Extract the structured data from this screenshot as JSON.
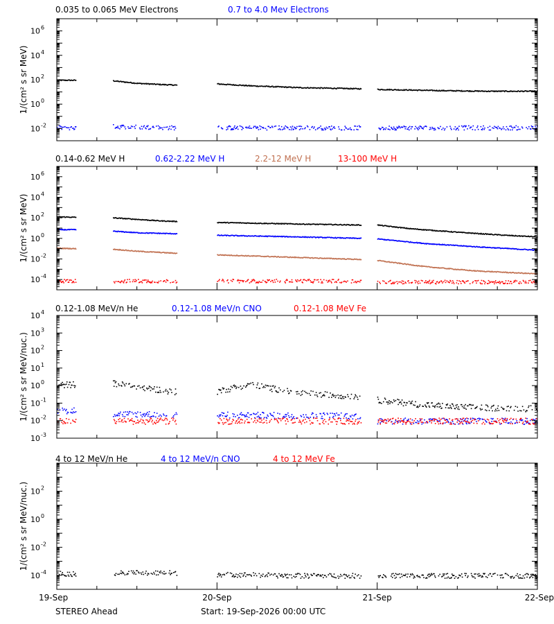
{
  "footer": {
    "spacecraft": "STEREO Ahead",
    "start": "Start: 19-Sep-2026 00:00 UTC"
  },
  "colors": {
    "black": "#000000",
    "blue": "#0000ff",
    "tan": "#c07050",
    "red": "#ff0000"
  },
  "chart_data": [
    {
      "type": "scatter",
      "ylabel": "1/(cm² s sr MeV)",
      "yscale": "log",
      "ylim_log10": [
        -3,
        7
      ],
      "yticks": [
        {
          "exp": -2,
          "label": "10-2"
        },
        {
          "exp": 0,
          "label": "100"
        },
        {
          "exp": 2,
          "label": "102"
        },
        {
          "exp": 4,
          "label": "104"
        },
        {
          "exp": 6,
          "label": "106"
        }
      ],
      "series": [
        {
          "name": "0.035 to 0.065 MeV Electrons",
          "color": "black",
          "points": [
            [
              0.0,
              2.0
            ],
            [
              0.12,
              2.0
            ],
            [
              0.35,
              1.95
            ],
            [
              0.5,
              1.75
            ],
            [
              0.65,
              1.65
            ],
            [
              0.75,
              1.6
            ],
            [
              1.0,
              1.7
            ],
            [
              1.2,
              1.55
            ],
            [
              1.5,
              1.4
            ],
            [
              1.9,
              1.3
            ],
            [
              2.0,
              1.25
            ],
            [
              2.4,
              1.15
            ],
            [
              2.7,
              1.1
            ],
            [
              3.0,
              1.1
            ]
          ]
        },
        {
          "name": "0.7 to 4.0 Mev Electrons",
          "color": "blue",
          "scatter": true,
          "points": [
            [
              0.0,
              -1.9
            ],
            [
              0.12,
              -1.9
            ],
            [
              0.35,
              -1.8
            ],
            [
              0.75,
              -1.9
            ],
            [
              1.0,
              -1.9
            ],
            [
              1.9,
              -1.9
            ],
            [
              2.0,
              -1.9
            ],
            [
              3.0,
              -1.9
            ]
          ]
        }
      ]
    },
    {
      "type": "scatter",
      "ylabel": "1/(cm² s sr MeV)",
      "yscale": "log",
      "ylim_log10": [
        -5,
        7
      ],
      "yticks": [
        {
          "exp": -4,
          "label": "10-4"
        },
        {
          "exp": -2,
          "label": "10-2"
        },
        {
          "exp": 0,
          "label": "100"
        },
        {
          "exp": 2,
          "label": "102"
        },
        {
          "exp": 4,
          "label": "104"
        },
        {
          "exp": 6,
          "label": "106"
        }
      ],
      "series": [
        {
          "name": "0.14-0.62 MeV H",
          "color": "black",
          "points": [
            [
              0.0,
              2.15
            ],
            [
              0.12,
              2.1
            ],
            [
              0.35,
              2.05
            ],
            [
              0.5,
              1.9
            ],
            [
              0.65,
              1.75
            ],
            [
              0.75,
              1.7
            ],
            [
              1.0,
              1.6
            ],
            [
              1.5,
              1.45
            ],
            [
              1.9,
              1.35
            ],
            [
              2.0,
              1.35
            ],
            [
              2.2,
              1.0
            ],
            [
              2.5,
              0.65
            ],
            [
              2.8,
              0.35
            ],
            [
              3.0,
              0.2
            ]
          ]
        },
        {
          "name": "0.62-2.22 MeV H",
          "color": "blue",
          "points": [
            [
              0.0,
              0.9
            ],
            [
              0.12,
              0.9
            ],
            [
              0.35,
              0.75
            ],
            [
              0.5,
              0.6
            ],
            [
              0.75,
              0.5
            ],
            [
              1.0,
              0.35
            ],
            [
              1.5,
              0.2
            ],
            [
              1.9,
              0.05
            ],
            [
              2.0,
              0.0
            ],
            [
              2.3,
              -0.45
            ],
            [
              2.6,
              -0.75
            ],
            [
              3.0,
              -1.1
            ]
          ]
        },
        {
          "name": "2.2-12 MeV H",
          "color": "tan",
          "points": [
            [
              0.0,
              -0.9
            ],
            [
              0.12,
              -0.95
            ],
            [
              0.35,
              -1.0
            ],
            [
              0.5,
              -1.2
            ],
            [
              0.75,
              -1.4
            ],
            [
              1.0,
              -1.55
            ],
            [
              1.5,
              -1.8
            ],
            [
              1.9,
              -2.0
            ],
            [
              2.0,
              -2.1
            ],
            [
              2.3,
              -2.7
            ],
            [
              2.6,
              -3.1
            ],
            [
              3.0,
              -3.4
            ]
          ]
        },
        {
          "name": "13-100 MeV H",
          "color": "red",
          "scatter": true,
          "points": [
            [
              0.0,
              -4.1
            ],
            [
              0.12,
              -4.1
            ],
            [
              0.35,
              -4.1
            ],
            [
              0.75,
              -4.1
            ],
            [
              1.0,
              -4.1
            ],
            [
              1.9,
              -4.1
            ],
            [
              2.0,
              -4.2
            ],
            [
              3.0,
              -4.2
            ]
          ]
        }
      ]
    },
    {
      "type": "scatter",
      "ylabel": "1/(cm² s sr MeV/nuc.)",
      "yscale": "log",
      "ylim_log10": [
        -3,
        4
      ],
      "yticks": [
        {
          "exp": -3,
          "label": "10-3"
        },
        {
          "exp": -2,
          "label": "10-2"
        },
        {
          "exp": -1,
          "label": "10-1"
        },
        {
          "exp": 0,
          "label": "100"
        },
        {
          "exp": 1,
          "label": "101"
        },
        {
          "exp": 2,
          "label": "102"
        },
        {
          "exp": 3,
          "label": "103"
        },
        {
          "exp": 4,
          "label": "104"
        }
      ],
      "series": [
        {
          "name": "0.12-1.08 MeV/n He",
          "color": "black",
          "scatter": true,
          "points": [
            [
              0.0,
              0.05
            ],
            [
              0.12,
              0.1
            ],
            [
              0.35,
              0.15
            ],
            [
              0.55,
              -0.1
            ],
            [
              0.75,
              -0.35
            ],
            [
              1.0,
              -0.3
            ],
            [
              1.2,
              0.1
            ],
            [
              1.5,
              -0.4
            ],
            [
              1.9,
              -0.6
            ],
            [
              2.0,
              -0.8
            ],
            [
              2.2,
              -1.0
            ],
            [
              2.5,
              -1.2
            ],
            [
              3.0,
              -1.3
            ]
          ]
        },
        {
          "name": "0.12-1.08 MeV/n CNO",
          "color": "blue",
          "scatter": true,
          "points": [
            [
              0.0,
              -1.4
            ],
            [
              0.12,
              -1.4
            ],
            [
              0.35,
              -1.6
            ],
            [
              0.75,
              -1.6
            ],
            [
              1.0,
              -1.65
            ],
            [
              1.9,
              -1.7
            ],
            [
              2.0,
              -2.0
            ],
            [
              3.0,
              -2.0
            ]
          ]
        },
        {
          "name": "0.12-1.08 MeV Fe",
          "color": "red",
          "scatter": true,
          "points": [
            [
              0.0,
              -2.0
            ],
            [
              0.12,
              -2.0
            ],
            [
              0.35,
              -2.0
            ],
            [
              0.75,
              -2.0
            ],
            [
              1.0,
              -2.0
            ],
            [
              1.9,
              -2.0
            ],
            [
              2.0,
              -2.0
            ],
            [
              3.0,
              -2.0
            ]
          ]
        }
      ]
    },
    {
      "type": "scatter",
      "ylabel": "1/(cm² s sr MeV/nuc.)",
      "yscale": "log",
      "ylim_log10": [
        -5,
        4
      ],
      "yticks": [
        {
          "exp": -4,
          "label": "10-4"
        },
        {
          "exp": -2,
          "label": "10-2"
        },
        {
          "exp": 0,
          "label": "100"
        },
        {
          "exp": 2,
          "label": "102"
        }
      ],
      "series": [
        {
          "name": "4 to 12 MeV/n He",
          "color": "black",
          "scatter": true,
          "points": [
            [
              0.0,
              -3.8
            ],
            [
              0.12,
              -3.9
            ],
            [
              0.35,
              -3.8
            ],
            [
              0.75,
              -3.8
            ],
            [
              1.0,
              -3.9
            ],
            [
              1.5,
              -4.0
            ],
            [
              1.9,
              -4.0
            ],
            [
              2.0,
              -4.0
            ],
            [
              3.0,
              -4.0
            ]
          ]
        },
        {
          "name": "4 to 12 MeV/n CNO",
          "color": "blue",
          "scatter": true,
          "points": []
        },
        {
          "name": "4 to 12 MeV Fe",
          "color": "red",
          "scatter": true,
          "points": []
        }
      ]
    }
  ],
  "x_axis": {
    "range_days": [
      0,
      3
    ],
    "ticks": [
      {
        "value": 0,
        "label": "19-Sep"
      },
      {
        "value": 1,
        "label": "20-Sep"
      },
      {
        "value": 2,
        "label": "21-Sep"
      },
      {
        "value": 3,
        "label": "22-Sep"
      }
    ],
    "data_segments": [
      [
        0.0,
        0.12
      ],
      [
        0.35,
        0.75
      ],
      [
        1.0,
        1.9
      ],
      [
        2.0,
        3.0
      ]
    ]
  }
}
